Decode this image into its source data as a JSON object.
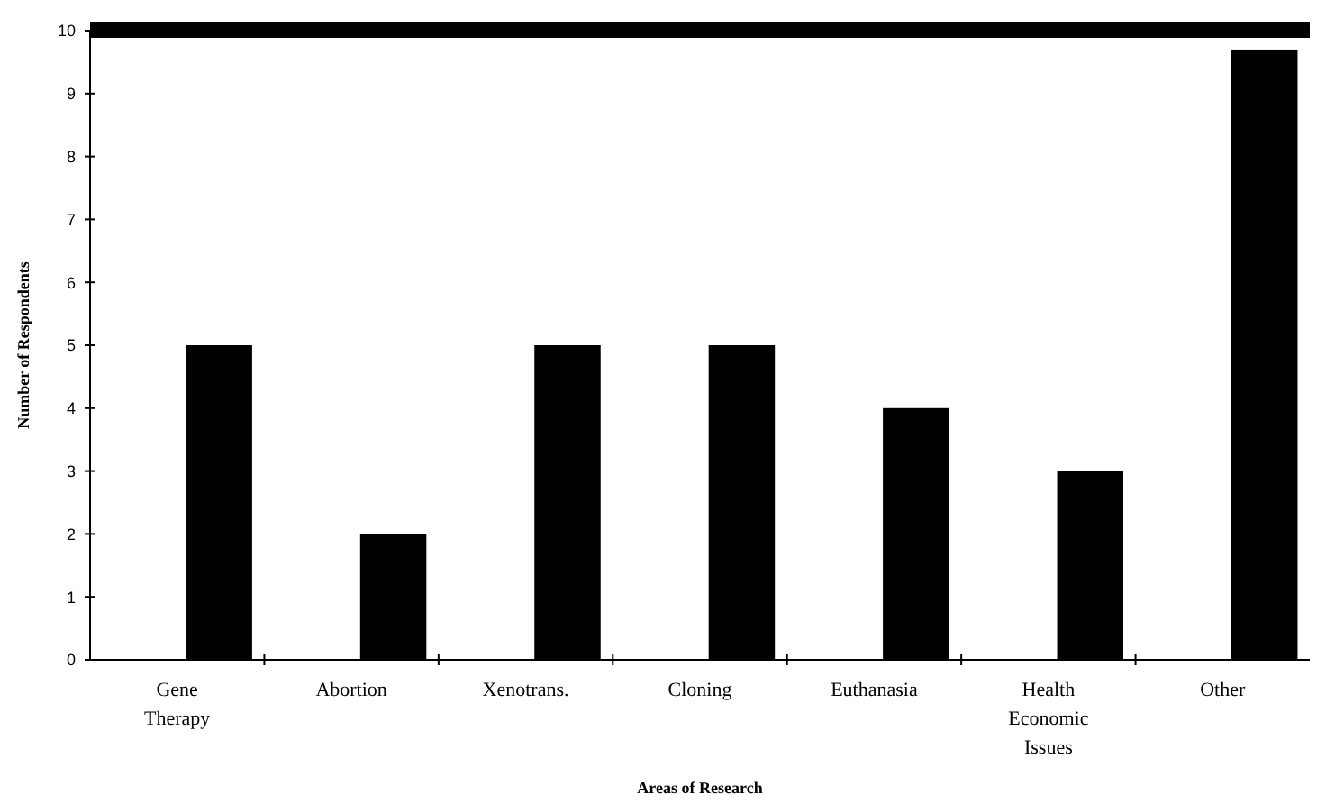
{
  "chart_data": {
    "type": "bar",
    "xlabel": "Areas of Research",
    "ylabel": "Number of Respondents",
    "categories": [
      "Gene\nTherapy",
      "Abortion",
      "Xenotrans.",
      "Cloning",
      "Euthanasia",
      "Health\nEconomic\nIssues",
      "Other"
    ],
    "values": [
      5,
      2,
      5,
      5,
      4,
      3,
      9.7
    ],
    "color": "#000000",
    "ylim": [
      0,
      10
    ],
    "yticks": [
      0,
      1,
      2,
      3,
      4,
      5,
      6,
      7,
      8,
      9,
      10
    ],
    "grid": false
  }
}
